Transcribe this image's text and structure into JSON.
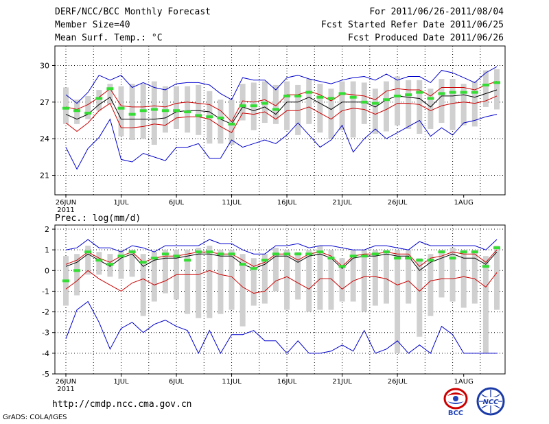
{
  "header": {
    "title": "DERF/NCC/BCC Monthly Forecast",
    "member_size": "Member Size=40",
    "variable": "Mean Surf. Temp.: °C",
    "period": "For 2011/06/26-2011/08/04",
    "started": "Fcst Started Refer Date 2011/06/25",
    "produced": "Fcst Produced Date 2011/06/26"
  },
  "footer": {
    "url": "http://cmdp.ncc.cma.gov.cn",
    "grads": "GrADS: COLA/IGES",
    "logo_bcc": "BCC",
    "logo_ncc": "NCC"
  },
  "chart_data": [
    {
      "type": "line",
      "title": "Mean Surf. Temp.: °C",
      "ylim": [
        19.4,
        31.6
      ],
      "yticks": [
        21,
        24,
        27,
        30
      ],
      "xticks": [
        "26JUN",
        "1JUL",
        "6JUL",
        "11JUL",
        "16JUL",
        "21JUL",
        "26JUL",
        "1AUG"
      ],
      "xtick_days": [
        0,
        5,
        10,
        15,
        20,
        25,
        30,
        36
      ],
      "year_label": "2011",
      "days": 40,
      "series": [
        {
          "name": "max",
          "color": "#0000cc",
          "values": [
            27.6,
            26.9,
            27.8,
            29.2,
            28.8,
            29.2,
            28.2,
            28.6,
            28.2,
            28.0,
            28.5,
            28.6,
            28.6,
            28.4,
            27.7,
            27.2,
            29.0,
            28.8,
            28.8,
            28.0,
            29.0,
            29.2,
            28.9,
            28.7,
            28.5,
            28.8,
            29.0,
            29.1,
            28.8,
            29.3,
            28.8,
            29.1,
            29.1,
            28.6,
            29.6,
            29.4,
            29.0,
            28.6,
            29.4,
            29.9
          ]
        },
        {
          "name": "upper",
          "color": "#cc0000",
          "values": [
            26.6,
            26.4,
            26.8,
            27.4,
            28.1,
            26.7,
            26.6,
            26.6,
            26.7,
            26.6,
            26.9,
            27.0,
            26.9,
            26.8,
            26.3,
            25.4,
            27.1,
            27.0,
            27.2,
            26.7,
            27.6,
            27.6,
            27.9,
            27.6,
            27.1,
            27.7,
            27.6,
            27.5,
            27.2,
            27.9,
            28.1,
            28.0,
            28.0,
            27.5,
            28.2,
            28.2,
            28.2,
            28.0,
            28.4,
            28.7
          ]
        },
        {
          "name": "mean",
          "color": "#000000",
          "values": [
            26.0,
            25.6,
            26.0,
            26.8,
            27.4,
            25.6,
            25.6,
            25.6,
            25.6,
            25.7,
            26.2,
            26.3,
            26.3,
            26.2,
            25.6,
            25.2,
            26.6,
            26.3,
            26.6,
            26.0,
            27.0,
            27.0,
            27.4,
            26.9,
            26.4,
            27.0,
            27.0,
            27.0,
            26.6,
            27.2,
            27.5,
            27.4,
            27.3,
            26.6,
            27.5,
            27.5,
            27.6,
            27.4,
            27.7,
            28.0
          ]
        },
        {
          "name": "lower",
          "color": "#cc0000",
          "values": [
            25.3,
            24.6,
            25.3,
            26.3,
            26.9,
            24.9,
            24.9,
            25.0,
            25.2,
            25.1,
            25.7,
            25.8,
            25.8,
            25.6,
            25.0,
            24.5,
            26.1,
            26.0,
            26.2,
            25.6,
            26.3,
            26.3,
            26.6,
            26.1,
            25.6,
            26.3,
            26.5,
            26.4,
            26.0,
            26.4,
            26.9,
            26.9,
            26.8,
            26.3,
            26.7,
            26.9,
            27.0,
            26.9,
            27.1,
            27.5
          ]
        },
        {
          "name": "min",
          "color": "#0000cc",
          "values": [
            23.3,
            21.5,
            23.2,
            24.1,
            25.6,
            22.3,
            22.1,
            22.8,
            22.5,
            22.2,
            23.3,
            23.3,
            23.6,
            22.4,
            22.4,
            23.9,
            23.3,
            23.6,
            23.9,
            23.6,
            24.3,
            25.3,
            24.3,
            23.3,
            23.9,
            25.1,
            22.9,
            24.0,
            24.8,
            24.0,
            24.5,
            25.0,
            25.5,
            24.2,
            24.9,
            24.3,
            25.3,
            25.5,
            25.8,
            26.0
          ]
        },
        {
          "name": "box_high",
          "color": "#d0d0d0",
          "values": [
            28.2,
            27.2,
            27.5,
            28.0,
            28.5,
            28.3,
            28.5,
            28.5,
            28.7,
            28.3,
            28.3,
            28.3,
            28.4,
            27.9,
            27.2,
            27.2,
            28.5,
            28.6,
            28.7,
            28.4,
            28.7,
            28.4,
            28.9,
            28.5,
            28.1,
            28.7,
            28.7,
            28.6,
            28.1,
            28.7,
            29.1,
            28.8,
            28.8,
            28.1,
            28.9,
            28.9,
            28.5,
            28.7,
            29.6,
            29.7
          ]
        },
        {
          "name": "box_low",
          "color": "#d0d0d0",
          "values": [
            25.2,
            25.2,
            25.6,
            26.3,
            26.8,
            24.2,
            23.9,
            24.0,
            23.5,
            24.5,
            24.8,
            24.5,
            24.3,
            23.6,
            23.6,
            23.5,
            25.5,
            24.7,
            25.3,
            25.2,
            24.7,
            24.3,
            25.2,
            24.5,
            24.0,
            24.7,
            24.1,
            25.2,
            24.4,
            24.6,
            25.1,
            24.8,
            24.4,
            24.8,
            25.3,
            24.7,
            25.1,
            25.0,
            26.6,
            26.4
          ]
        },
        {
          "name": "control",
          "color": "#33dd33",
          "values": [
            26.5,
            26.3,
            26.1,
            27.3,
            28.1,
            26.5,
            26.0,
            26.3,
            26.4,
            26.3,
            26.3,
            26.2,
            25.9,
            25.8,
            25.7,
            25.2,
            26.7,
            26.7,
            26.9,
            26.4,
            27.5,
            27.5,
            27.8,
            27.4,
            27.3,
            27.7,
            27.4,
            27.0,
            26.9,
            27.2,
            27.5,
            27.6,
            27.8,
            27.3,
            27.7,
            27.8,
            27.8,
            27.8,
            28.4,
            28.6
          ]
        }
      ]
    },
    {
      "type": "line",
      "title": "Prec.: log(mm/d)",
      "ylim": [
        -5,
        2.2
      ],
      "yticks": [
        -5,
        -4,
        -3,
        -2,
        -1,
        0,
        1,
        2
      ],
      "xticks": [
        "26JUN",
        "1JUL",
        "6JUL",
        "11JUL",
        "16JUL",
        "21JUL",
        "26JUL",
        "1AUG"
      ],
      "xtick_days": [
        0,
        5,
        10,
        15,
        20,
        25,
        30,
        36
      ],
      "year_label": "2011",
      "days": 40,
      "series": [
        {
          "name": "max",
          "color": "#0000cc",
          "values": [
            1.0,
            1.1,
            1.5,
            1.1,
            1.1,
            0.9,
            1.2,
            1.1,
            0.9,
            1.2,
            1.2,
            1.2,
            1.2,
            1.5,
            1.3,
            1.3,
            1.0,
            0.8,
            0.8,
            1.2,
            1.2,
            1.3,
            1.1,
            1.2,
            1.2,
            1.1,
            1.0,
            1.0,
            1.2,
            1.2,
            1.1,
            1.0,
            1.4,
            1.2,
            1.2,
            1.2,
            1.2,
            1.2,
            1.0,
            1.5
          ]
        },
        {
          "name": "upper",
          "color": "#cc0000",
          "values": [
            0.3,
            0.5,
            0.9,
            0.6,
            0.4,
            0.7,
            0.9,
            0.4,
            0.6,
            0.7,
            0.7,
            0.8,
            0.9,
            0.9,
            0.8,
            0.8,
            0.5,
            0.2,
            0.4,
            0.8,
            0.8,
            0.5,
            0.8,
            0.9,
            0.7,
            0.2,
            0.7,
            0.8,
            0.8,
            0.9,
            0.8,
            0.8,
            0.2,
            0.6,
            0.7,
            0.9,
            0.8,
            0.8,
            0.4,
            1.0
          ]
        },
        {
          "name": "mean",
          "color": "#000000",
          "values": [
            0.2,
            0.4,
            0.8,
            0.5,
            0.2,
            0.6,
            0.8,
            0.2,
            0.5,
            0.6,
            0.6,
            0.7,
            0.8,
            0.8,
            0.7,
            0.7,
            0.3,
            0.1,
            0.3,
            0.7,
            0.7,
            0.4,
            0.7,
            0.8,
            0.6,
            0.1,
            0.6,
            0.7,
            0.7,
            0.8,
            0.7,
            0.7,
            0.0,
            0.4,
            0.6,
            0.8,
            0.6,
            0.6,
            0.3,
            0.9
          ]
        },
        {
          "name": "lower",
          "color": "#cc0000",
          "values": [
            -0.9,
            -0.5,
            0.0,
            -0.4,
            -0.7,
            -1.0,
            -0.6,
            -0.4,
            -0.7,
            -0.5,
            -0.2,
            -0.2,
            -0.2,
            0.0,
            -0.2,
            -0.3,
            -0.8,
            -1.1,
            -1.0,
            -0.5,
            -0.3,
            -0.6,
            -0.9,
            -0.4,
            -0.4,
            -0.9,
            -0.5,
            -0.3,
            -0.3,
            -0.4,
            -0.7,
            -0.5,
            -1.0,
            -0.5,
            -0.4,
            -0.4,
            -0.3,
            -0.4,
            -0.8,
            -0.1
          ]
        },
        {
          "name": "min",
          "color": "#0000cc",
          "values": [
            -3.3,
            -1.9,
            -1.5,
            -2.5,
            -3.8,
            -2.8,
            -2.5,
            -3.0,
            -2.6,
            -2.4,
            -2.7,
            -2.9,
            -4.0,
            -2.9,
            -4.0,
            -3.1,
            -3.1,
            -2.9,
            -3.4,
            -3.4,
            -4.0,
            -3.4,
            -4.0,
            -4.0,
            -3.9,
            -3.6,
            -3.9,
            -2.9,
            -4.0,
            -3.8,
            -3.4,
            -4.0,
            -3.6,
            -4.0,
            -2.7,
            -3.1,
            -4.0,
            -4.0,
            -4.0,
            -4.0
          ]
        },
        {
          "name": "box_high",
          "color": "#d0d0d0",
          "values": [
            0.7,
            0.8,
            1.2,
            0.9,
            0.8,
            1.0,
            1.0,
            0.8,
            0.9,
            1.0,
            1.0,
            1.0,
            1.1,
            1.2,
            1.0,
            1.0,
            0.8,
            0.6,
            0.8,
            1.1,
            1.0,
            0.9,
            1.0,
            1.2,
            1.0,
            0.6,
            1.0,
            1.0,
            1.0,
            1.0,
            1.0,
            1.0,
            0.6,
            0.8,
            1.0,
            1.1,
            1.0,
            1.0,
            0.7,
            1.2
          ]
        },
        {
          "name": "box_low",
          "color": "#d0d0d0",
          "values": [
            -1.7,
            -1.2,
            -0.2,
            -0.2,
            -0.3,
            -0.4,
            -0.3,
            -2.2,
            -1.5,
            -1.1,
            -1.4,
            -2.1,
            -2.3,
            -2.3,
            -2.1,
            -1.9,
            -2.7,
            -1.7,
            -1.6,
            -1.0,
            -1.9,
            -1.4,
            -2.0,
            -1.9,
            -1.9,
            -1.5,
            -1.5,
            -2.0,
            -1.7,
            -1.6,
            -4.0,
            -1.6,
            -3.2,
            -2.2,
            -1.3,
            -1.5,
            -1.8,
            -1.6,
            -4.0,
            -1.9
          ]
        },
        {
          "name": "control",
          "color": "#33dd33",
          "values": [
            -0.5,
            0.0,
            0.9,
            0.5,
            0.3,
            0.7,
            0.9,
            0.4,
            0.6,
            0.8,
            0.7,
            0.5,
            0.9,
            0.9,
            0.8,
            0.8,
            0.3,
            0.1,
            0.5,
            0.8,
            0.8,
            0.8,
            0.8,
            0.9,
            0.6,
            0.2,
            0.7,
            0.7,
            0.8,
            0.9,
            0.6,
            0.6,
            0.5,
            0.5,
            0.9,
            0.6,
            0.9,
            0.9,
            0.2,
            1.1
          ]
        }
      ]
    }
  ]
}
